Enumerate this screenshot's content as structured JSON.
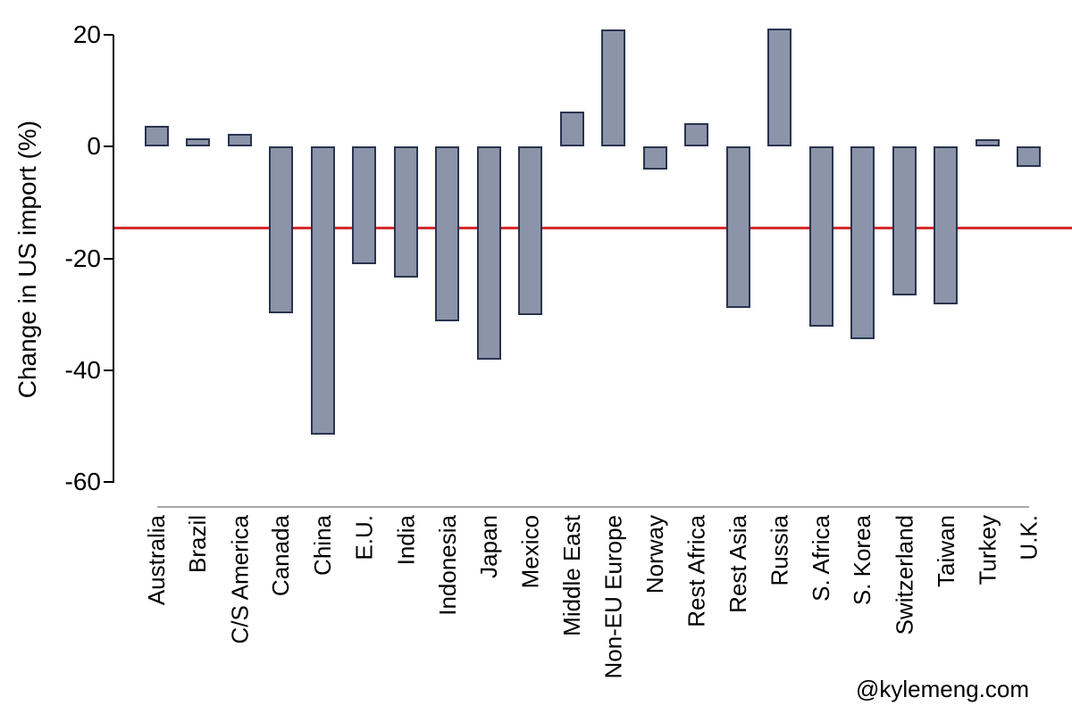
{
  "watermark": "@kylemeng.com",
  "chart_data": {
    "type": "bar",
    "title": "",
    "xlabel": "",
    "ylabel": "Change in US import (%)",
    "ylim": [
      -60,
      20
    ],
    "yticks": [
      20,
      0,
      -20,
      -40,
      -60
    ],
    "grid": false,
    "legend": null,
    "categories": [
      "Australia",
      "Brazil",
      "C/S America",
      "Canada",
      "China",
      "E.U.",
      "India",
      "Indonesia",
      "Japan",
      "Mexico",
      "Middle East",
      "Non-EU Europe",
      "Norway",
      "Rest Africa",
      "Rest Asia",
      "Russia",
      "S. Africa",
      "S. Korea",
      "Switzerland",
      "Taiwan",
      "Turkey",
      "U.K."
    ],
    "values": [
      3.7,
      1.5,
      2.3,
      -29.8,
      -51.5,
      -21.0,
      -23.5,
      -31.2,
      -38.2,
      -30.2,
      6.3,
      21.0,
      -4.1,
      4.2,
      -28.8,
      21.2,
      -32.3,
      -34.4,
      -26.6,
      -28.2,
      1.4,
      -3.6
    ],
    "reference_line": {
      "value": -14.6,
      "color": "#d62b2f"
    },
    "colors": {
      "bar_fill": "#8b94a9",
      "bar_stroke": "#2a3450",
      "axis": "#000000",
      "baseline": "#a8a8a8"
    }
  }
}
